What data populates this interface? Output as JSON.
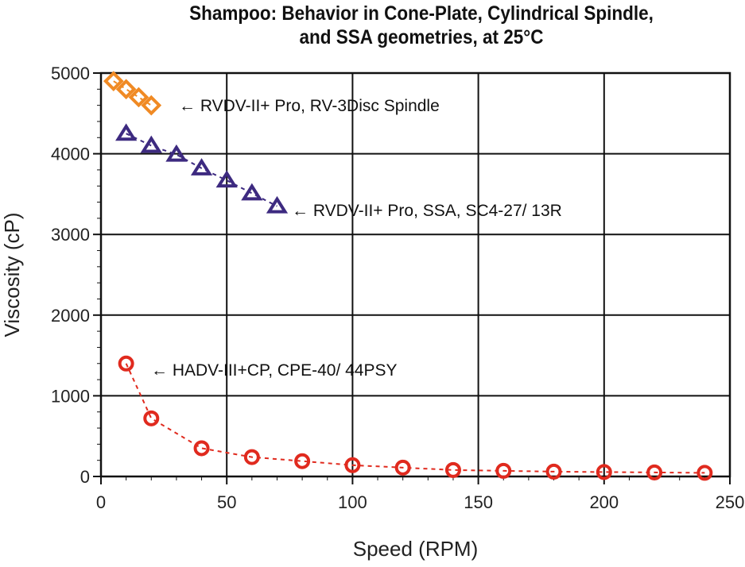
{
  "chart_data": {
    "type": "scatter",
    "title": "Shampoo: Behavior in Cone-Plate, Cylindrical Spindle, and SSA geometries, at 25°C",
    "title_lines": [
      "Shampoo: Behavior in Cone-Plate, Cylindrical Spindle,",
      "and SSA geometries, at 25°C"
    ],
    "xlabel": "Speed (RPM)",
    "ylabel": "Viscosity (cP)",
    "xlim": [
      0,
      250
    ],
    "ylim": [
      0,
      5000
    ],
    "xticks": [
      0,
      50,
      100,
      150,
      200,
      250
    ],
    "yticks": [
      0,
      1000,
      2000,
      3000,
      4000,
      5000
    ],
    "grid": true,
    "series": [
      {
        "name": "← RVDV-II+ Pro, RV-3Disc Spindle",
        "marker": "diamond",
        "color": "#f08a24",
        "x": [
          5,
          10,
          15,
          20
        ],
        "y": [
          4900,
          4800,
          4700,
          4600
        ]
      },
      {
        "name": "← RVDV-II+ Pro, SSA, SC4-27/ 13R",
        "marker": "triangle",
        "color": "#3d2a80",
        "x": [
          10,
          20,
          30,
          40,
          50,
          60,
          70
        ],
        "y": [
          4250,
          4100,
          3990,
          3820,
          3670,
          3510,
          3350
        ]
      },
      {
        "name": "← HADV-III+CP, CPE-40/ 44PSY",
        "marker": "circle",
        "color": "#e02a1e",
        "x": [
          10,
          20,
          40,
          60,
          80,
          100,
          120,
          140,
          160,
          180,
          200,
          220,
          240
        ],
        "y": [
          1400,
          720,
          350,
          240,
          190,
          140,
          110,
          80,
          70,
          60,
          55,
          50,
          45
        ]
      }
    ]
  }
}
